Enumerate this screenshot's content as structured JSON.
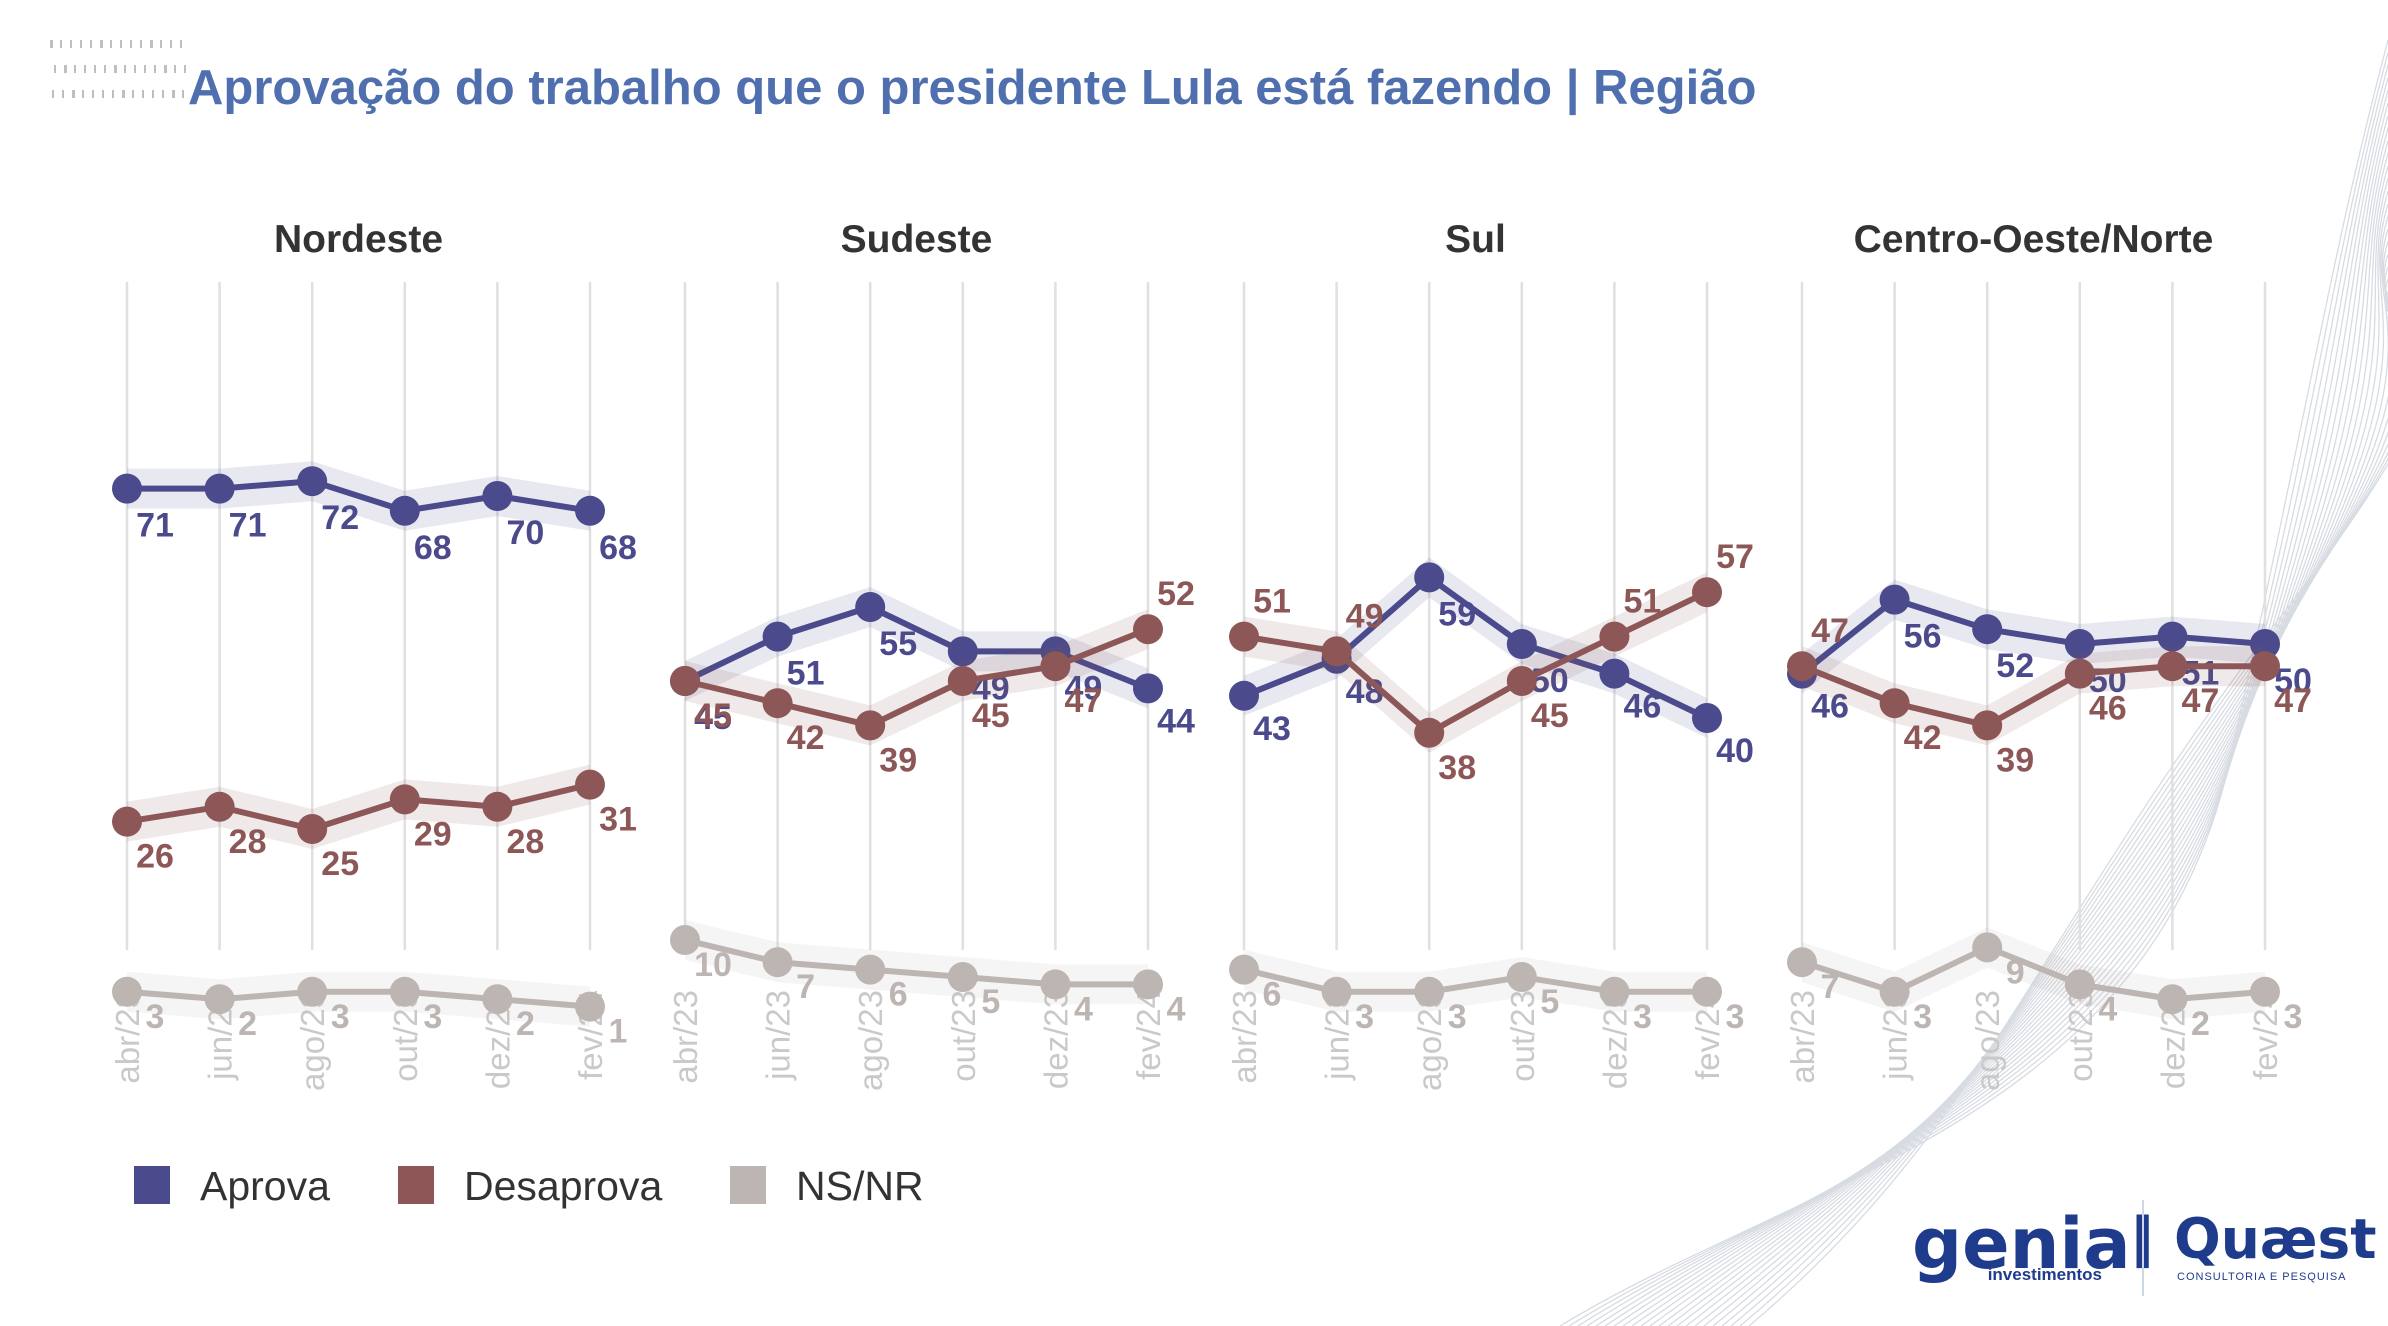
{
  "title": "Aprovação do trabalho que o presidente Lula está fazendo | Região",
  "colors": {
    "aprova": "#4a4a8c",
    "desaprova": "#8e5757",
    "nsnr": "#bdb5b2",
    "title": "#4f6fae",
    "grid": "#e0e0e0",
    "tick": "#c9c9c9"
  },
  "legend": {
    "aprova": "Aprova",
    "desaprova": "Desaprova",
    "nsnr": "NS/NR"
  },
  "brand": {
    "genial": "genial",
    "genial_sub": "investimentos",
    "quaest": "Quæst",
    "quaest_sub": "CONSULTORIA E PESQUISA"
  },
  "chart_data": [
    {
      "type": "line",
      "title": "Nordeste",
      "categories": [
        "abr/23",
        "jun/23",
        "ago/23",
        "out/23",
        "dez/23",
        "fev/24"
      ],
      "series": [
        {
          "name": "Aprova",
          "values": [
            71,
            71,
            72,
            68,
            70,
            68
          ]
        },
        {
          "name": "Desaprova",
          "values": [
            26,
            28,
            25,
            29,
            28,
            31
          ]
        },
        {
          "name": "NS/NR",
          "values": [
            3,
            2,
            3,
            3,
            2,
            1
          ]
        }
      ],
      "ylim": [
        0,
        100
      ]
    },
    {
      "type": "line",
      "title": "Sudeste",
      "categories": [
        "abr/23",
        "jun/23",
        "ago/23",
        "out/23",
        "dez/23",
        "fev/24"
      ],
      "series": [
        {
          "name": "Aprova",
          "values": [
            45,
            51,
            55,
            49,
            49,
            44
          ]
        },
        {
          "name": "Desaprova",
          "values": [
            45,
            42,
            39,
            45,
            47,
            52
          ]
        },
        {
          "name": "NS/NR",
          "values": [
            10,
            7,
            6,
            5,
            4,
            4
          ]
        }
      ],
      "ylim": [
        0,
        100
      ]
    },
    {
      "type": "line",
      "title": "Sul",
      "categories": [
        "abr/23",
        "jun/23",
        "ago/23",
        "out/23",
        "dez/23",
        "fev/24"
      ],
      "series": [
        {
          "name": "Aprova",
          "values": [
            43,
            48,
            59,
            50,
            46,
            40
          ]
        },
        {
          "name": "Desaprova",
          "values": [
            51,
            49,
            38,
            45,
            51,
            57
          ]
        },
        {
          "name": "NS/NR",
          "values": [
            6,
            3,
            3,
            5,
            3,
            3
          ]
        }
      ],
      "ylim": [
        0,
        100
      ]
    },
    {
      "type": "line",
      "title": "Centro-Oeste/Norte",
      "categories": [
        "abr/23",
        "jun/23",
        "ago/23",
        "out/23",
        "dez/23",
        "fev/24"
      ],
      "series": [
        {
          "name": "Aprova",
          "values": [
            46,
            56,
            52,
            50,
            51,
            50
          ]
        },
        {
          "name": "Desaprova",
          "values": [
            47,
            42,
            39,
            46,
            47,
            47
          ]
        },
        {
          "name": "NS/NR",
          "values": [
            7,
            3,
            9,
            4,
            2,
            3
          ]
        }
      ],
      "ylim": [
        0,
        100
      ]
    }
  ]
}
